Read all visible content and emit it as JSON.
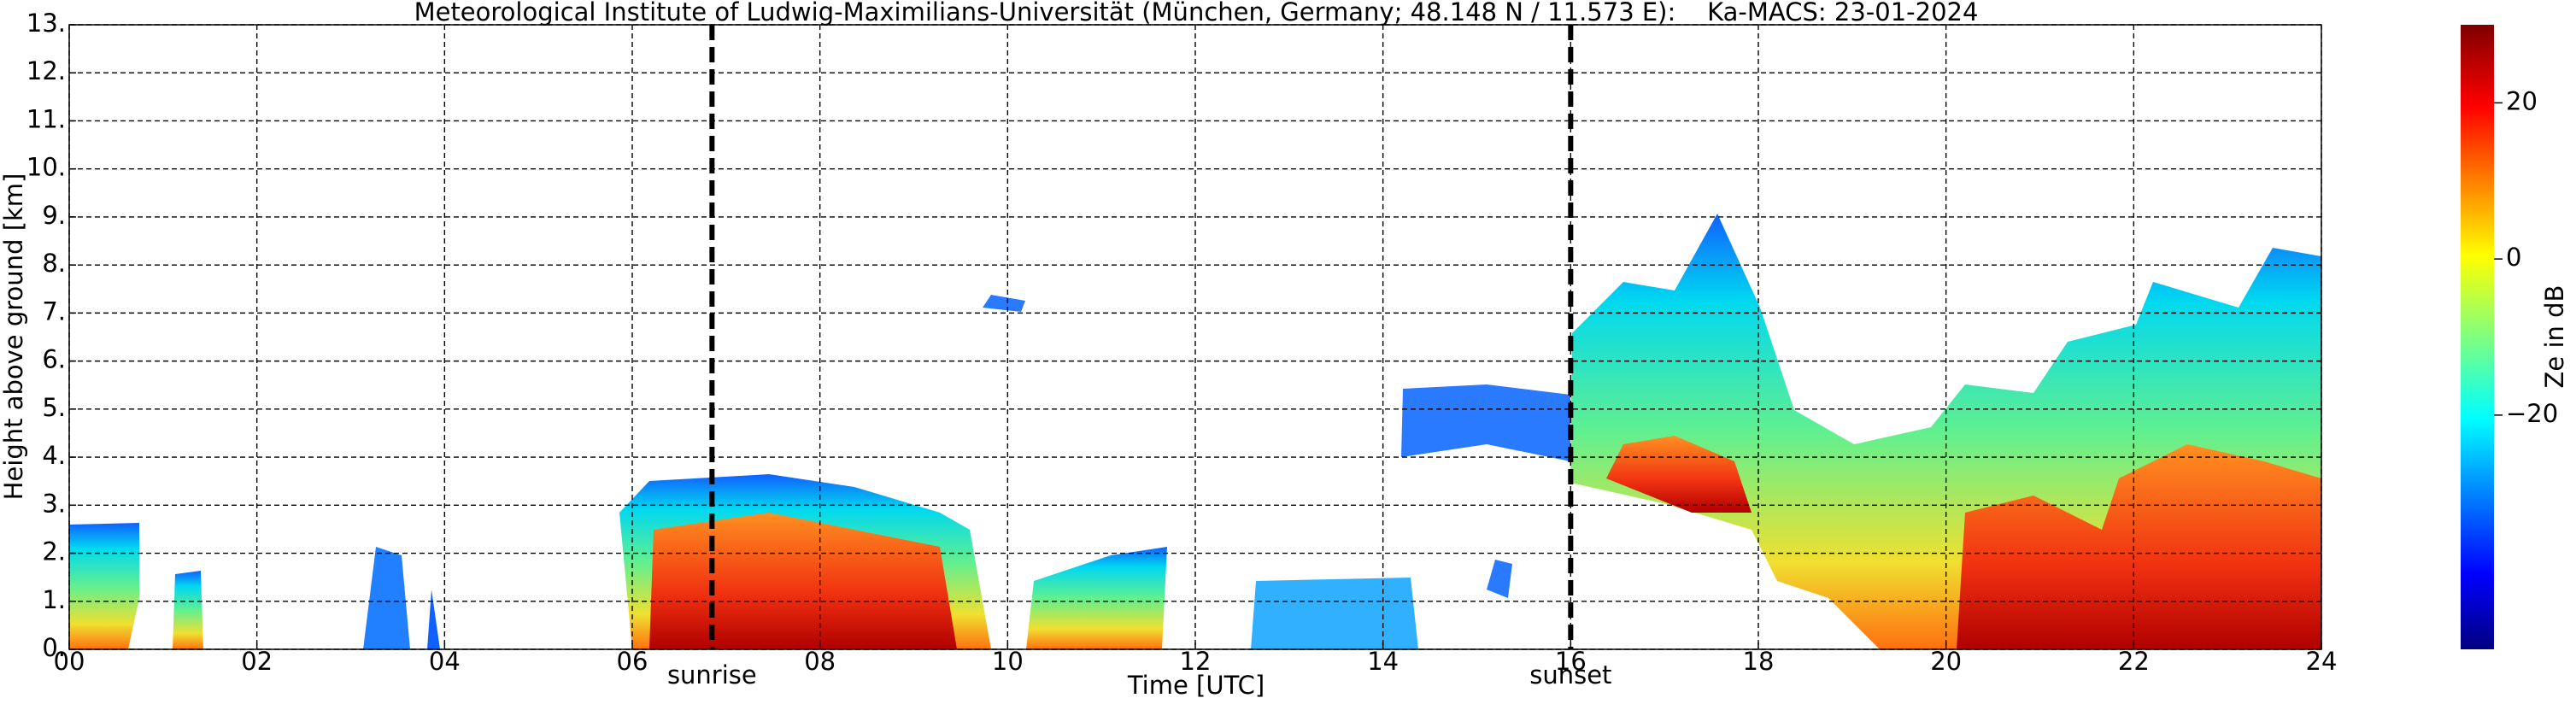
{
  "chart_data": {
    "type": "time-height",
    "title": "Meteorological Institute of Ludwig-Maximilians-Universität (München, Germany; 48.148 N / 11.573 E):    Ka-MACS: 23-01-2024",
    "x_label": "Time [UTC]",
    "y_label": "Height above ground [km]",
    "xlim": [
      0,
      24
    ],
    "xticks": [
      {
        "value": 0,
        "label": "00"
      },
      {
        "value": 2,
        "label": "02"
      },
      {
        "value": 4,
        "label": "04"
      },
      {
        "value": 6,
        "label": "06"
      },
      {
        "value": 8,
        "label": "08"
      },
      10,
      12,
      14,
      16,
      18,
      20,
      22,
      24
    ],
    "ylim": [
      0,
      13
    ],
    "yticks": [
      {
        "value": 0,
        "label": "0."
      },
      {
        "value": 1,
        "label": "1."
      },
      {
        "value": 2,
        "label": "2."
      },
      {
        "value": 3,
        "label": "3."
      },
      {
        "value": 4,
        "label": "4."
      },
      {
        "value": 5,
        "label": "5."
      },
      {
        "value": 6,
        "label": "6."
      },
      {
        "value": 7,
        "label": "7."
      },
      {
        "value": 8,
        "label": "8."
      },
      {
        "value": 9,
        "label": "9."
      },
      {
        "value": 10,
        "label": "10."
      },
      {
        "value": 11,
        "label": "11."
      },
      {
        "value": 12,
        "label": "12."
      },
      {
        "value": 13,
        "label": "13."
      }
    ],
    "grid": true,
    "annotations": [
      {
        "text": "sunrise",
        "x": 6.85
      },
      {
        "text": "sunset",
        "x": 16.0
      }
    ],
    "colorbar": {
      "label": "Ze in dB",
      "lim": [
        -50,
        30
      ],
      "ticks": [
        {
          "value": -20,
          "label": "−20"
        },
        0,
        20
      ]
    }
  }
}
